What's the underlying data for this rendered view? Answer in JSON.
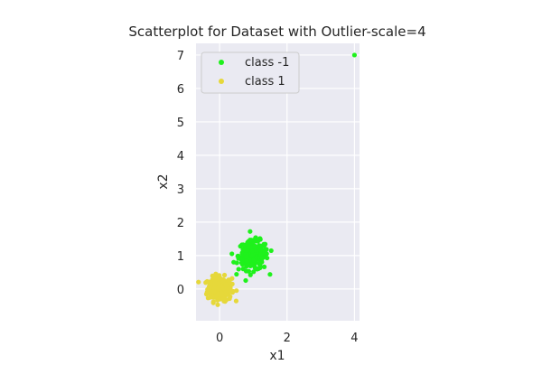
{
  "chart_data": {
    "type": "scatter",
    "title": "Scatterplot for Dataset with Outlier-scale=4",
    "xlabel": "x1",
    "ylabel": "x2",
    "xlim": [
      -0.7,
      4.15
    ],
    "ylim": [
      -0.95,
      7.35
    ],
    "xticks": [
      0,
      2,
      4
    ],
    "yticks": [
      0,
      1,
      2,
      3,
      4,
      5,
      6,
      7
    ],
    "grid": true,
    "legend_position": "top-left",
    "series": [
      {
        "name": "class -1",
        "color": "#1ff11c",
        "center": [
          1.0,
          1.0
        ],
        "spread": 0.22,
        "count": 220,
        "outliers": [
          [
            4.0,
            7.0
          ]
        ]
      },
      {
        "name": "class 1",
        "color": "#e6d83a",
        "center": [
          0.0,
          0.0
        ],
        "spread": 0.18,
        "count": 240,
        "outliers": []
      }
    ]
  }
}
